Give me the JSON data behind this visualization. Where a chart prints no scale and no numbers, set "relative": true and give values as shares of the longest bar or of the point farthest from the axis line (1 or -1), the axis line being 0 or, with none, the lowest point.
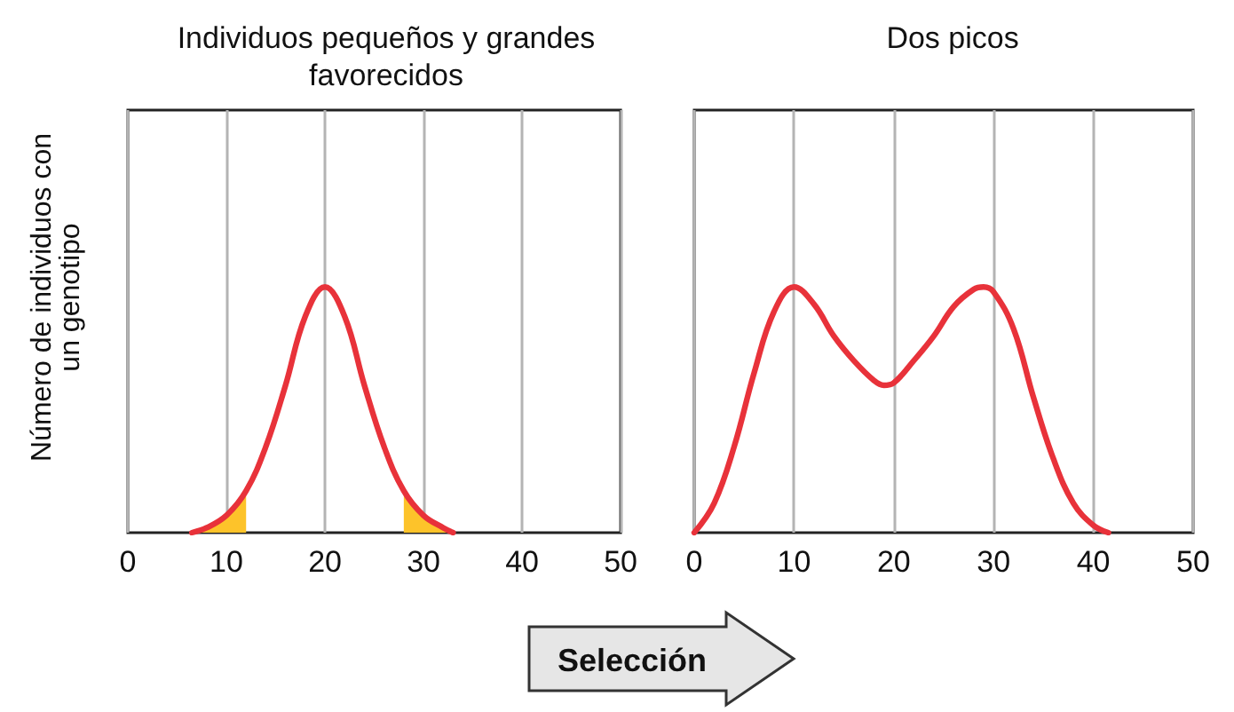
{
  "chart_data": [
    {
      "type": "line",
      "title": "Individuos pequeños y grandes\nfavorecidos",
      "ylabel": "Número de individuos con\nun genotipo",
      "relative": true,
      "xlim": [
        0,
        50
      ],
      "xticks": [
        0,
        10,
        20,
        30,
        40,
        50
      ],
      "grid": "x",
      "marker": "none",
      "line_style": "solid",
      "series": [
        {
          "type": "area",
          "color": "#fdc32a",
          "x": [
            6.5,
            8,
            10,
            12
          ],
          "values": [
            0,
            0.02,
            0.07,
            0.17
          ]
        },
        {
          "type": "area",
          "color": "#fdc32a",
          "x": [
            28,
            30,
            32,
            33
          ],
          "values": [
            0.17,
            0.07,
            0.02,
            0
          ]
        },
        {
          "color": "#e8323a",
          "x": [
            6.5,
            8,
            10,
            12,
            14,
            16,
            18,
            20,
            22,
            24,
            26,
            28,
            30,
            32,
            33
          ],
          "values": [
            0,
            0.02,
            0.07,
            0.17,
            0.35,
            0.6,
            0.88,
            1,
            0.88,
            0.6,
            0.35,
            0.17,
            0.07,
            0.02,
            0
          ]
        }
      ]
    },
    {
      "type": "line",
      "title": "Dos picos",
      "relative": true,
      "xlim": [
        0,
        50
      ],
      "xticks": [
        0,
        10,
        20,
        30,
        40,
        50
      ],
      "grid": "x",
      "marker": "none",
      "line_style": "solid",
      "annotations": [
        "Selección"
      ],
      "series": [
        {
          "color": "#e8323a",
          "x": [
            0,
            2,
            4,
            6,
            8,
            10,
            12,
            14,
            16,
            18,
            19,
            20,
            22,
            24,
            26,
            28,
            29,
            30,
            32,
            34,
            36,
            38,
            40,
            41.5
          ],
          "values": [
            0,
            0.12,
            0.35,
            0.65,
            0.9,
            1,
            0.93,
            0.8,
            0.7,
            0.62,
            0.6,
            0.61,
            0.7,
            0.8,
            0.92,
            0.99,
            1,
            0.98,
            0.83,
            0.55,
            0.3,
            0.12,
            0.03,
            0
          ]
        }
      ]
    }
  ]
}
